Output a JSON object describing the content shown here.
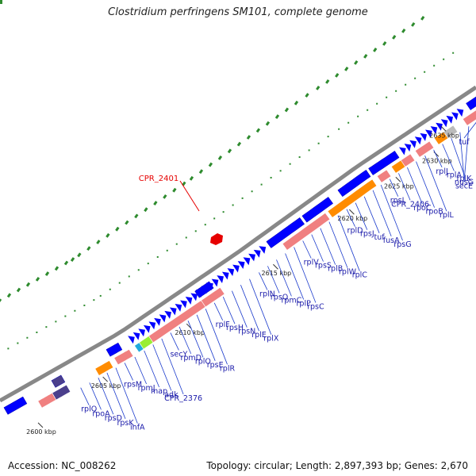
{
  "title": "Clostridium perfringens SM101, complete genome",
  "highlight": {
    "name": "CPR_2401",
    "color": "#e60000"
  },
  "footer": {
    "accession": "Accession: NC_008262",
    "summary": "Topology: circular; Length: 2,897,393 bp; Genes: 2,670"
  },
  "colors": {
    "backbone": "#888888",
    "cds": "#0000ff",
    "rrna": "#ff8c00",
    "gene": "#f08080",
    "green": "#99ee33",
    "cyan": "#22aadd",
    "gray": "#bbbbbb",
    "navy": "#4b3f8c",
    "dots": "#2e8b2e"
  },
  "ticks": [
    "2600 kbp",
    "2605 kbp",
    "2610 kbp",
    "2615 kbp",
    "2620 kbp",
    "2625 kbp",
    "2630 kbp",
    "2635 kbp"
  ],
  "genes": [
    "rplQ",
    "rpoA",
    "rpsD",
    "rpsK",
    "infA",
    "rpsM",
    "rpmJ",
    "map",
    "adk",
    "CPR_2376",
    "secY",
    "rpmD",
    "rplO",
    "rpsE",
    "rplR",
    "rplF",
    "rpsH",
    "rpsN",
    "rplE",
    "rplX",
    "rplN",
    "rpsQ",
    "rpmC",
    "rplP",
    "rpsC",
    "rplV",
    "rpsS",
    "rplB",
    "rplW",
    "rplC",
    "rplD",
    "rpsJ",
    "tuf",
    "fusA",
    "rpsG",
    "rpsL",
    "CPR_2406",
    "rpoC",
    "rpoB",
    "rplL",
    "rplJ",
    "rplA",
    "rplK",
    "nusG",
    "secE",
    "tuf"
  ]
}
